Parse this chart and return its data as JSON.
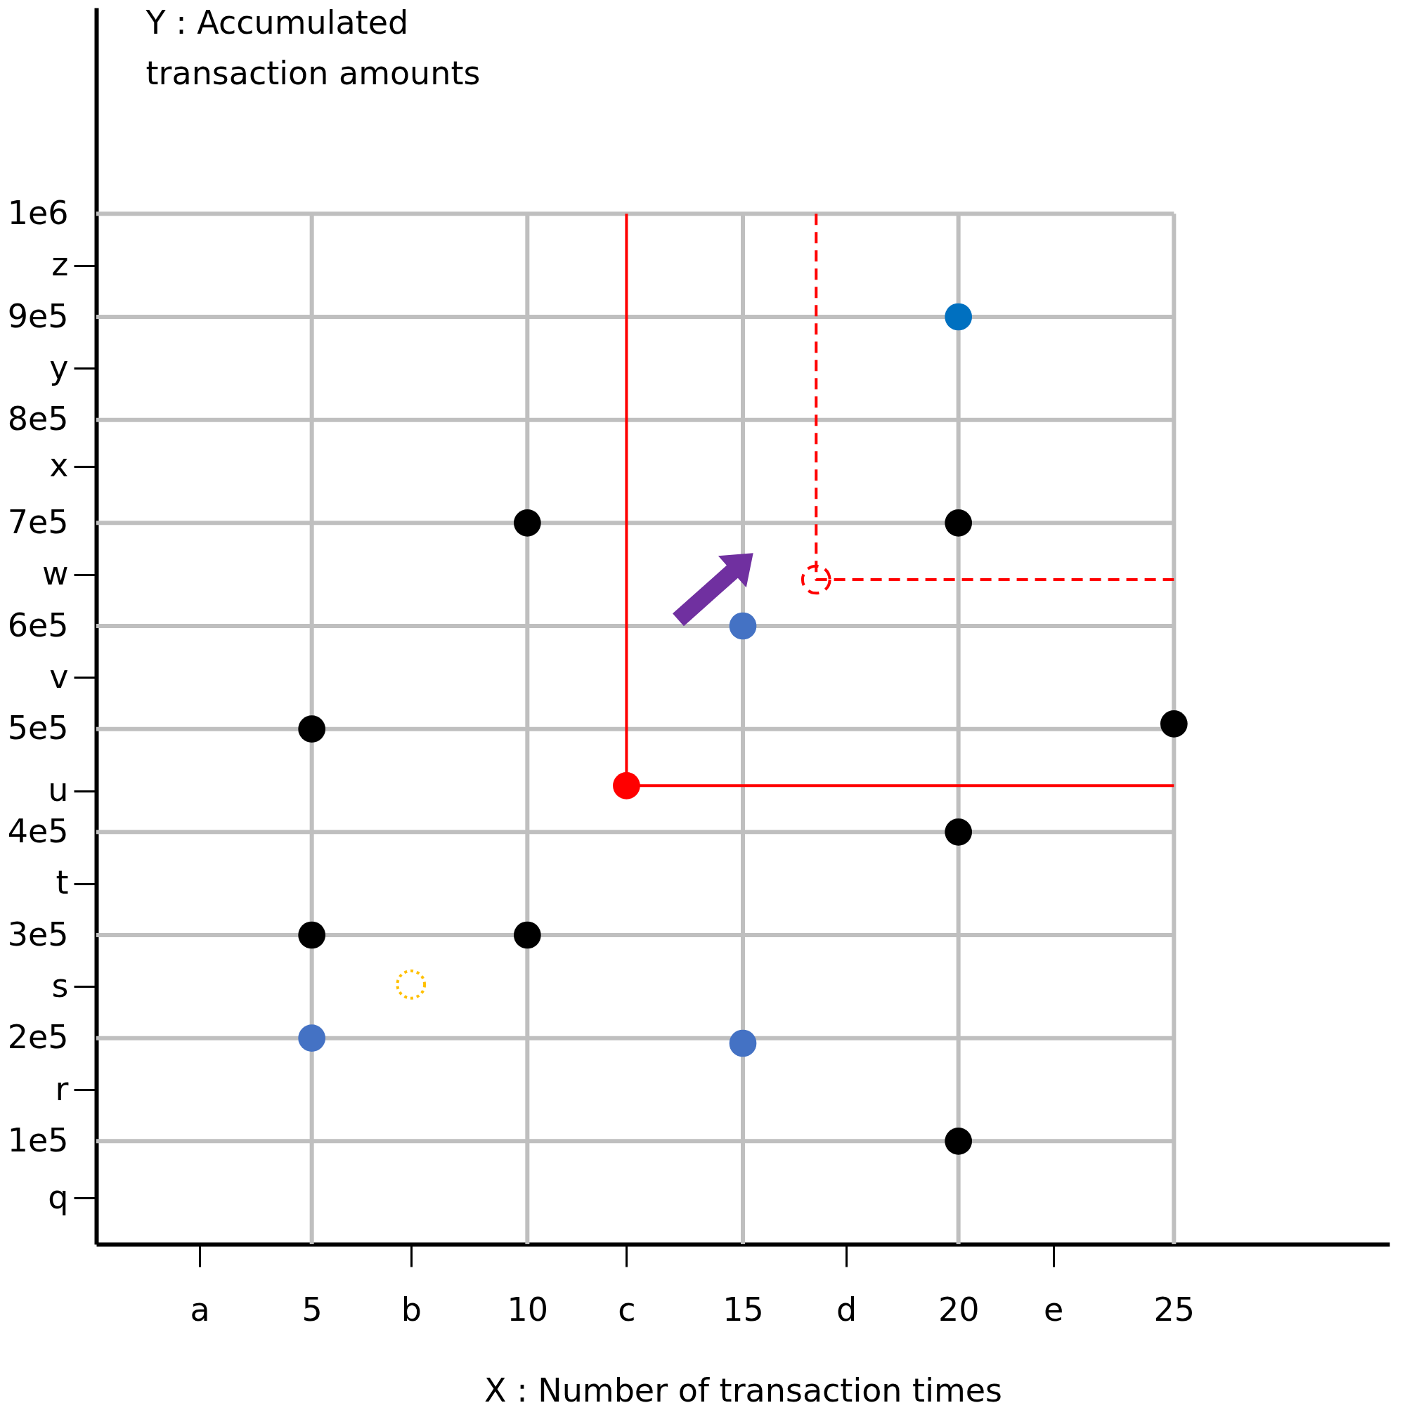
{
  "chart_data": {
    "type": "scatter",
    "xlabel": "X : Number of transaction times",
    "ylabel": "Y : Accumulated transaction amounts",
    "xlim": [
      0,
      30
    ],
    "ylim": [
      0,
      1200000
    ],
    "xticks": [
      {
        "value": 2.4,
        "label": "a"
      },
      5,
      {
        "value": 7.3,
        "label": "b"
      },
      10,
      {
        "value": 12.3,
        "label": "c"
      },
      15,
      {
        "value": 17.4,
        "label": "d"
      },
      20,
      {
        "value": 22.2,
        "label": "e"
      },
      25
    ],
    "yticks": [
      {
        "value": 45000,
        "label": "q"
      },
      {
        "value": 100000,
        "label": "1e5"
      },
      {
        "value": 150000,
        "label": "r"
      },
      {
        "value": 200000,
        "label": "2e5"
      },
      {
        "value": 250000,
        "label": "s"
      },
      {
        "value": 300000,
        "label": "3e5"
      },
      {
        "value": 350000,
        "label": "t"
      },
      {
        "value": 400000,
        "label": "4e5"
      },
      {
        "value": 440000,
        "label": "u"
      },
      {
        "value": 500000,
        "label": "5e5"
      },
      {
        "value": 550000,
        "label": "v"
      },
      {
        "value": 600000,
        "label": "6e5"
      },
      {
        "value": 650000,
        "label": "w"
      },
      {
        "value": 700000,
        "label": "7e5"
      },
      {
        "value": 755000,
        "label": "x"
      },
      {
        "value": 800000,
        "label": "8e5"
      },
      {
        "value": 850000,
        "label": "y"
      },
      {
        "value": 900000,
        "label": "9e5"
      },
      {
        "value": 950000,
        "label": "z"
      },
      {
        "value": 1000000,
        "label": "1e6"
      }
    ],
    "grid": true,
    "marker": "circle",
    "series": [
      {
        "type": "line",
        "color": "#ff0000",
        "line_style": "solid",
        "marker": "none",
        "x": [
          12.3,
          12.3,
          25
        ],
        "values": [
          1000000,
          445000,
          445000
        ]
      },
      {
        "type": "line",
        "color": "#ff0000",
        "line_style": "dashed",
        "marker": "none",
        "x": [
          16.7,
          16.7,
          25
        ],
        "values": [
          1000000,
          645000,
          645000
        ]
      },
      {
        "color": "#000000",
        "x": [
          5,
          5,
          10,
          10,
          20,
          20,
          20,
          25
        ],
        "values": [
          500000,
          300000,
          700000,
          300000,
          700000,
          400000,
          100000,
          505000
        ]
      },
      {
        "color": "#4472c4",
        "x": [
          5,
          15,
          15
        ],
        "values": [
          200000,
          600000,
          195000
        ]
      },
      {
        "color": "#0070c0",
        "x": [
          20
        ],
        "values": [
          900000
        ]
      },
      {
        "color": "#ff0000",
        "x": [
          12.3
        ],
        "values": [
          445000
        ]
      },
      {
        "color": "#ff0000",
        "line_style": "dashed",
        "x": [
          16.7
        ],
        "values": [
          645000
        ]
      },
      {
        "color": "#ffc000",
        "line_style": "dotted",
        "x": [
          7.3
        ],
        "values": [
          252000
        ]
      }
    ]
  }
}
